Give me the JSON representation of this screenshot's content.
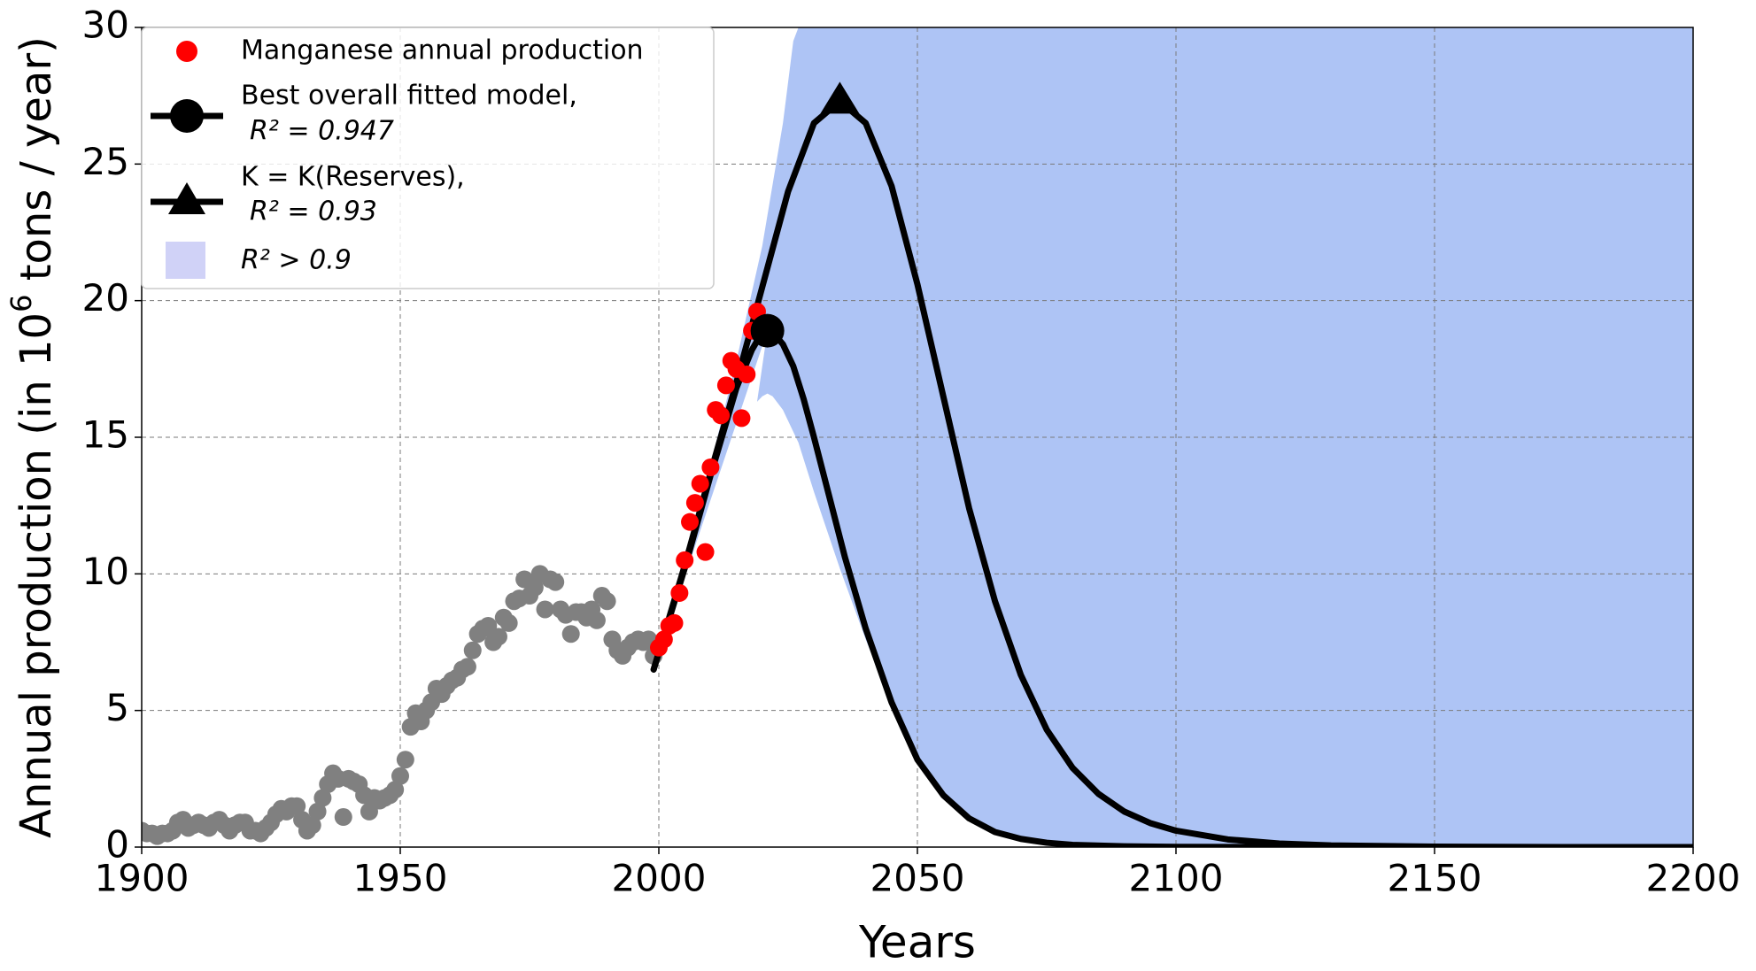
{
  "chart_data": {
    "type": "scatter",
    "xlabel": "Years",
    "ylabel": "Annual production (in 10^6 tons / year)",
    "xlim": [
      1900,
      2200
    ],
    "ylim": [
      0,
      30
    ],
    "xticks": [
      1900,
      1950,
      2000,
      2050,
      2100,
      2150,
      2200
    ],
    "yticks": [
      0,
      5,
      10,
      15,
      20,
      25,
      30
    ],
    "grid": true,
    "legend_position": "top-left",
    "legend": [
      {
        "label": "Manganese annual production",
        "marker": "circle",
        "color": "#ff0000"
      },
      {
        "label_line1": "Best overall fitted model,",
        "label_line2": "R² = 0.947",
        "marker": "circle-line",
        "color": "#000000"
      },
      {
        "label_line1": "K = K(Reserves),",
        "label_line2": "R² = 0.93",
        "marker": "triangle-line",
        "color": "#000000"
      },
      {
        "label": "R² > 0.9",
        "marker": "patch",
        "color": "#d0d2f7"
      }
    ],
    "colors": {
      "historical": "#808080",
      "fitted_points": "#ff0000",
      "model_lines": "#000000",
      "band": "#aec4f5"
    },
    "series": [
      {
        "name": "Historical production (gray)",
        "x": [
          1900,
          1901,
          1902,
          1903,
          1904,
          1905,
          1906,
          1907,
          1908,
          1909,
          1910,
          1911,
          1912,
          1913,
          1914,
          1915,
          1916,
          1917,
          1918,
          1919,
          1920,
          1921,
          1922,
          1923,
          1924,
          1925,
          1926,
          1927,
          1928,
          1929,
          1930,
          1931,
          1932,
          1933,
          1934,
          1935,
          1936,
          1937,
          1938,
          1939,
          1940,
          1941,
          1942,
          1943,
          1944,
          1945,
          1946,
          1947,
          1948,
          1949,
          1950,
          1951,
          1952,
          1953,
          1954,
          1955,
          1956,
          1957,
          1958,
          1959,
          1960,
          1961,
          1962,
          1963,
          1964,
          1965,
          1966,
          1967,
          1968,
          1969,
          1970,
          1971,
          1972,
          1973,
          1974,
          1975,
          1976,
          1977,
          1978,
          1979,
          1980,
          1981,
          1982,
          1983,
          1984,
          1985,
          1986,
          1987,
          1988,
          1989,
          1990,
          1991,
          1992,
          1993,
          1994,
          1995,
          1996,
          1997,
          1998,
          1999
        ],
        "y": [
          0.6,
          0.5,
          0.5,
          0.4,
          0.5,
          0.5,
          0.6,
          0.9,
          1.0,
          0.7,
          0.8,
          0.9,
          0.8,
          0.7,
          0.9,
          1.0,
          0.8,
          0.6,
          0.8,
          0.9,
          0.9,
          0.6,
          0.6,
          0.5,
          0.7,
          0.9,
          1.2,
          1.4,
          1.3,
          1.5,
          1.5,
          1.0,
          0.6,
          0.8,
          1.3,
          1.8,
          2.3,
          2.7,
          2.5,
          1.1,
          2.5,
          2.4,
          2.3,
          1.9,
          1.3,
          1.8,
          1.7,
          1.8,
          1.9,
          2.1,
          2.6,
          3.2,
          4.4,
          4.9,
          4.6,
          5.0,
          5.3,
          5.8,
          5.6,
          5.9,
          6.1,
          6.2,
          6.5,
          6.6,
          7.2,
          7.8,
          8.0,
          8.1,
          7.5,
          7.7,
          8.4,
          8.2,
          9.0,
          9.1,
          9.8,
          9.2,
          9.5,
          10.0,
          8.7,
          9.8,
          9.7,
          8.7,
          8.5,
          7.8,
          8.6,
          8.6,
          8.4,
          8.7,
          8.3,
          9.2,
          9.0,
          7.6,
          7.2,
          7.0,
          7.3,
          7.5,
          7.6,
          7.5,
          7.6,
          7.0
        ]
      },
      {
        "name": "Manganese annual production",
        "x": [
          2000,
          2001,
          2002,
          2003,
          2004,
          2005,
          2006,
          2007,
          2008,
          2009,
          2010,
          2011,
          2012,
          2013,
          2014,
          2015,
          2016,
          2017,
          2018,
          2019
        ],
        "y": [
          7.3,
          7.6,
          8.1,
          8.2,
          9.3,
          10.5,
          11.9,
          12.6,
          13.3,
          10.8,
          13.9,
          16.0,
          15.8,
          16.9,
          17.8,
          17.5,
          15.7,
          17.3,
          18.9,
          19.6
        ]
      },
      {
        "name": "Best overall fitted model, R² = 0.947",
        "peak": {
          "x": 2021,
          "y": 18.9
        },
        "x": [
          1999,
          2005,
          2010,
          2015,
          2018,
          2020,
          2021,
          2022,
          2024,
          2026,
          2028,
          2030,
          2033,
          2036,
          2040,
          2045,
          2050,
          2055,
          2060,
          2065,
          2070,
          2075,
          2080,
          2090,
          2100,
          2120,
          2150,
          2200
        ],
        "y": [
          6.5,
          10.2,
          13.6,
          16.8,
          18.2,
          18.85,
          18.9,
          18.85,
          18.4,
          17.6,
          16.4,
          15.0,
          12.8,
          10.6,
          8.0,
          5.3,
          3.2,
          1.9,
          1.05,
          0.55,
          0.3,
          0.16,
          0.08,
          0.03,
          0.01,
          0.0,
          0.0,
          0.0
        ]
      },
      {
        "name": "K = K(Reserves), R² = 0.93",
        "peak": {
          "x": 2035,
          "y": 27.3
        },
        "x": [
          1999,
          2005,
          2010,
          2015,
          2020,
          2025,
          2030,
          2035,
          2040,
          2045,
          2050,
          2055,
          2060,
          2065,
          2070,
          2075,
          2080,
          2085,
          2090,
          2095,
          2100,
          2110,
          2120,
          2130,
          2150,
          2175,
          2200
        ],
        "y": [
          6.5,
          10.3,
          13.7,
          17.0,
          20.5,
          24.0,
          26.5,
          27.3,
          26.5,
          24.2,
          20.6,
          16.5,
          12.4,
          9.0,
          6.3,
          4.3,
          2.9,
          1.95,
          1.3,
          0.88,
          0.6,
          0.28,
          0.13,
          0.06,
          0.015,
          0.0,
          0.0
        ]
      },
      {
        "name": "R² > 0.9 (band)",
        "upper_x": [
          1999,
          2005,
          2010,
          2015,
          2020,
          2024,
          2026,
          2027,
          2200
        ],
        "upper_y": [
          6.5,
          10.5,
          14.0,
          17.8,
          22.0,
          26.5,
          29.5,
          30,
          30
        ],
        "lower_x": [
          2019,
          2020,
          2021,
          2022,
          2024,
          2027,
          2030,
          2035,
          2040,
          2045,
          2050,
          2055,
          2060,
          2065,
          2070,
          2075,
          2080,
          2090,
          2200
        ],
        "lower_y": [
          16.3,
          16.5,
          16.6,
          16.5,
          16.0,
          14.8,
          13.0,
          10.2,
          7.6,
          5.2,
          3.3,
          2.0,
          1.15,
          0.6,
          0.3,
          0.14,
          0.06,
          0.01,
          0.0
        ]
      }
    ]
  }
}
